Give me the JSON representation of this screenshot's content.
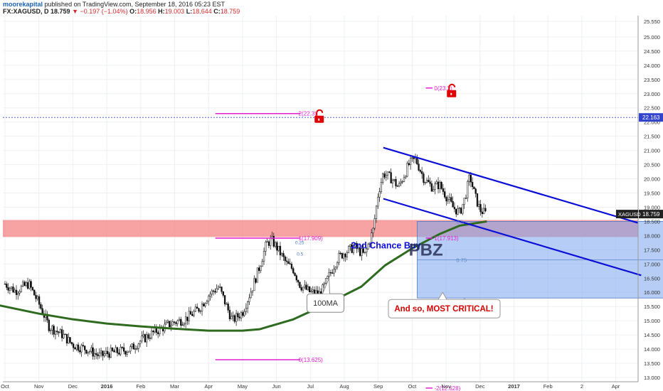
{
  "header": {
    "author": "moorekapital",
    "published_text": "published on TradingView.com, September 18, 2016 05:23 EST",
    "symbol": "FX:XAGUSD, D",
    "last": "18.759",
    "change_arrow": "▼",
    "change": "−0.197 (−1.04%)",
    "o_label": "O:",
    "o": "18.956",
    "h_label": "H:",
    "h": "19.003",
    "l_label": "L:",
    "l": "18.644",
    "c_label": "C:",
    "c": "18.759"
  },
  "chart_data": {
    "type": "candlestick",
    "symbol": "XAGUSD",
    "ylim": [
      12.85,
      25.75
    ],
    "y_ticks": [
      "25.550",
      "25.000",
      "24.500",
      "24.000",
      "23.500",
      "23.000",
      "22.500",
      "22.000",
      "21.500",
      "21.000",
      "20.500",
      "20.000",
      "19.500",
      "19.000",
      "18.500",
      "18.000",
      "17.500",
      "17.000",
      "16.500",
      "16.000",
      "15.500",
      "15.000",
      "14.500",
      "14.000",
      "13.500",
      "13.000"
    ],
    "x_labels": [
      "Oct",
      "Nov",
      "Dec",
      "2016",
      "Feb",
      "Mar",
      "Apr",
      "May",
      "Jun",
      "Jul",
      "Aug",
      "Sep",
      "Oct",
      "Nov",
      "Dec",
      "2017",
      "Feb",
      "2",
      "Apr"
    ],
    "bold_x_labels": [
      "2016",
      "2017"
    ],
    "price_path": [
      [
        0,
        16.3
      ],
      [
        0.3,
        16.05
      ],
      [
        0.7,
        16.3
      ],
      [
        1,
        15.6
      ],
      [
        1.3,
        14.8
      ],
      [
        1.7,
        14.5
      ],
      [
        2,
        14.15
      ],
      [
        2.4,
        14.0
      ],
      [
        2.8,
        13.75
      ],
      [
        3,
        13.85
      ],
      [
        3.3,
        13.9
      ],
      [
        3.7,
        14.0
      ],
      [
        4,
        14.3
      ],
      [
        4.4,
        14.6
      ],
      [
        4.8,
        14.85
      ],
      [
        5,
        14.95
      ],
      [
        5.3,
        15.05
      ],
      [
        5.7,
        15.4
      ],
      [
        6,
        15.9
      ],
      [
        6.3,
        16.2
      ],
      [
        6.7,
        15.0
      ],
      [
        7,
        15.3
      ],
      [
        7.3,
        16.2
      ],
      [
        7.5,
        16.9
      ],
      [
        7.7,
        17.7
      ],
      [
        7.85,
        17.85
      ],
      [
        8,
        17.6
      ],
      [
        8.3,
        17.0
      ],
      [
        8.5,
        16.8
      ],
      [
        8.7,
        16.25
      ],
      [
        9,
        16.0
      ],
      [
        9.3,
        15.95
      ],
      [
        9.6,
        16.7
      ],
      [
        9.8,
        17.2
      ],
      [
        10,
        17.4
      ],
      [
        10.3,
        17.6
      ],
      [
        10.6,
        17.3
      ],
      [
        10.85,
        18.2
      ],
      [
        11,
        19.5
      ],
      [
        11.15,
        20.2
      ],
      [
        11.4,
        20.0
      ],
      [
        11.6,
        19.7
      ],
      [
        11.9,
        20.5
      ],
      [
        12.1,
        20.7
      ],
      [
        12.35,
        20.0
      ],
      [
        12.6,
        19.7
      ],
      [
        12.8,
        19.8
      ],
      [
        13,
        19.4
      ],
      [
        13.2,
        19.0
      ],
      [
        13.4,
        18.8
      ],
      [
        13.55,
        19.3
      ],
      [
        13.7,
        20.1
      ],
      [
        13.85,
        19.4
      ],
      [
        14,
        18.9
      ],
      [
        14.2,
        18.75
      ]
    ],
    "ma100": {
      "label": "100MA",
      "points": [
        [
          -0.2,
          15.55
        ],
        [
          1,
          15.25
        ],
        [
          2,
          15.05
        ],
        [
          3,
          14.9
        ],
        [
          4,
          14.8
        ],
        [
          5,
          14.72
        ],
        [
          6,
          14.65
        ],
        [
          7,
          14.65
        ],
        [
          7.5,
          14.7
        ],
        [
          8.5,
          15.05
        ],
        [
          9.5,
          15.6
        ],
        [
          10.5,
          16.2
        ],
        [
          11.2,
          16.95
        ],
        [
          12,
          17.55
        ],
        [
          12.8,
          18.05
        ],
        [
          13.4,
          18.35
        ],
        [
          14.2,
          18.5
        ]
      ]
    },
    "channel": {
      "upper": [
        [
          11.15,
          21.1
        ],
        [
          18.65,
          18.45
        ]
      ],
      "lower": [
        [
          11.15,
          19.3
        ],
        [
          18.75,
          16.6
        ]
      ]
    },
    "resistance_zone": [
      17.95,
      18.55
    ],
    "buy_zone": {
      "x": [
        12.15,
        19.75
      ],
      "y": [
        15.8,
        18.5
      ],
      "label": "2nd Chance Buy"
    },
    "pbz_label": "PBZ",
    "fib_levels": [
      {
        "label": "2(22.3)",
        "price": 22.3
      },
      {
        "label": "1(17.909)",
        "price": 17.909
      },
      {
        "label": "0(13.625)",
        "price": 13.625
      },
      {
        "label": "0(23.2)",
        "price": 23.2
      },
      {
        "label": "1(17.913)",
        "price": 17.913
      },
      {
        "label": "-2(12.628)",
        "price": 12.628
      }
    ],
    "inner_fib_labels": [
      "0.5",
      "0.75",
      "1"
    ],
    "small_fib_labels": [
      "0.25",
      "0.5"
    ],
    "dotted_line_price": 22.163,
    "dotted_line_label": "22.163",
    "current_price_label": "18.759",
    "symbol_price_tag": "XAGUSD",
    "annotation_critical": "And so, MOST CRITICAL!",
    "colors": {
      "channel": "#0b0ed6",
      "ma": "#2e6b1f",
      "fib": "#e020d0",
      "resistance": "#f48484",
      "buy_zone": "#7aa6ee",
      "critical_text": "#d60000",
      "lock": "#e00000"
    }
  }
}
